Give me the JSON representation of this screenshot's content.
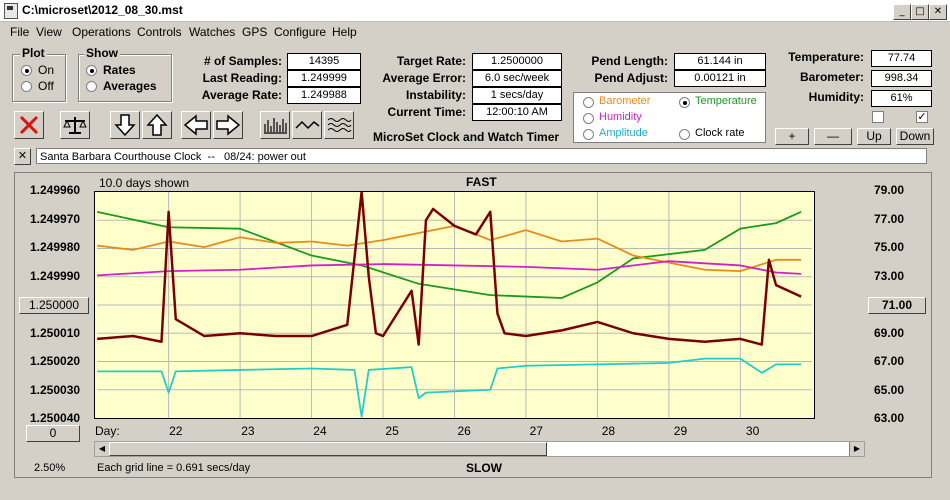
{
  "window": {
    "title": "C:\\microset\\2012_08_30.mst",
    "minimize": "_",
    "maximize": "□",
    "close": "✕"
  },
  "menu": [
    "File",
    "View",
    "Operations",
    "Controls",
    "Watches",
    "GPS",
    "Configure",
    "Help"
  ],
  "plot_group": {
    "title": "Plot",
    "on": "On",
    "off": "Off",
    "selected": "On"
  },
  "show_group": {
    "title": "Show",
    "rates": "Rates",
    "averages": "Averages",
    "selected": "Rates"
  },
  "stats": {
    "samples_label": "# of Samples:",
    "samples": "14395",
    "last_label": "Last Reading:",
    "last": "1.249999",
    "avg_label": "Average Rate:",
    "avg": "1.249988",
    "target_label": "Target Rate:",
    "target": "1.2500000",
    "err_label": "Average Error:",
    "err": "6.0 sec/week",
    "instab_label": "Instability:",
    "instab": "1 secs/day",
    "time_label": "Current Time:",
    "time": "12:00:10 AM",
    "pend_len_label": "Pend Length:",
    "pend_len": "61.144 in",
    "pend_adj_label": "Pend Adjust:",
    "pend_adj": "0.00121 in",
    "temp_label": "Temperature:",
    "temp": "77.74",
    "baro_label": "Barometer:",
    "baro": "998.34",
    "hum_label": "Humidity:",
    "hum": "61%"
  },
  "app_caption": "MicroSet Clock and Watch Timer",
  "sensors": {
    "barometer": {
      "label": "Barometer",
      "color": "#e88a1a"
    },
    "temperature": {
      "label": "Temperature",
      "color": "#1a9a1a"
    },
    "humidity": {
      "label": "Humidity",
      "color": "#cc22cc"
    },
    "amplitude": {
      "label": "Amplitude",
      "color": "#22cccc"
    },
    "clock_rate": {
      "label": "Clock rate",
      "color": "#000000"
    },
    "selected": "Temperature"
  },
  "adjust_buttons": {
    "plus": "+",
    "minus": "—",
    "up": "Up",
    "down": "Down"
  },
  "note": {
    "close": "✕",
    "text": "Santa Barbara Courthouse Clock  --   08/24: power out"
  },
  "chart_header": {
    "days_shown": "10.0 days shown",
    "top": "FAST",
    "bottom": "SLOW",
    "grid_note": "Each grid line = 0.691 secs/day",
    "zoom": "2.50%",
    "left_button": "1.250000",
    "right_button": "71.00",
    "offset_button": "0",
    "day_label": "Day:"
  },
  "icons": {
    "stop": "stop-icon",
    "balance": "balance-icon",
    "arrow_down": "arrow-down-icon",
    "arrow_up": "arrow-up-icon",
    "arrow_left": "arrow-left-icon",
    "arrow_right": "arrow-right-icon",
    "bars": "bar-chart-icon",
    "wave": "wave-icon",
    "multiwave": "multi-wave-icon"
  },
  "chart_data": {
    "type": "line",
    "left_axis": {
      "ticks": [
        "1.249960",
        "1.249970",
        "1.249980",
        "1.249990",
        "1.250000",
        "1.250010",
        "1.250020",
        "1.250030",
        "1.250040"
      ],
      "range": [
        1.24996,
        1.25004
      ],
      "inverted": true
    },
    "right_axis": {
      "ticks": [
        "79.00",
        "77.00",
        "75.00",
        "73.00",
        "71.00",
        "69.00",
        "67.00",
        "65.00",
        "63.00"
      ],
      "range": [
        63,
        79
      ]
    },
    "x_axis": {
      "ticks": [
        "22",
        "23",
        "24",
        "25",
        "26",
        "27",
        "28",
        "29",
        "30"
      ],
      "range": [
        21,
        31
      ]
    },
    "series": [
      {
        "key": "temperature",
        "color": "#1a9a1a",
        "x": [
          21,
          22,
          23,
          24,
          24.7,
          25.5,
          26.5,
          27.5,
          28,
          28.5,
          29,
          29.5,
          30,
          30.5,
          30.85
        ],
        "y": [
          77.6,
          76.5,
          76.4,
          74.5,
          73.8,
          72.5,
          71.7,
          71.5,
          72.6,
          74.3,
          74.6,
          74.9,
          76.4,
          76.8,
          77.6
        ]
      },
      {
        "key": "barometer",
        "color": "#e88a1a",
        "x": [
          21,
          21.5,
          22,
          22.5,
          23,
          23.5,
          24,
          24.5,
          25,
          25.5,
          26,
          26.5,
          27,
          27.5,
          28,
          28.5,
          29,
          29.5,
          30,
          30.5,
          30.85
        ],
        "y": [
          75.2,
          74.9,
          75.5,
          75.1,
          75.8,
          75.4,
          75.5,
          75.2,
          75.6,
          76.1,
          76.6,
          75.6,
          76.3,
          75.5,
          75.7,
          74.5,
          74.0,
          73.5,
          73.4,
          74.2,
          74.2
        ]
      },
      {
        "key": "humidity",
        "color": "#cc22cc",
        "x": [
          21,
          22,
          23,
          24,
          25,
          26,
          27,
          28,
          29,
          30,
          30.5,
          30.85
        ],
        "y": [
          73.1,
          73.4,
          73.5,
          73.8,
          73.9,
          73.8,
          73.7,
          73.5,
          74.1,
          73.8,
          73.3,
          73.2
        ]
      },
      {
        "key": "amplitude",
        "color": "#22cccc",
        "x": [
          21,
          21.9,
          22,
          22.1,
          23,
          24,
          24.6,
          24.7,
          24.8,
          25.4,
          25.5,
          25.6,
          26.5,
          26.6,
          27,
          28,
          29,
          29.5,
          30,
          30.3,
          30.5,
          30.85
        ],
        "y": [
          66.3,
          66.3,
          64.8,
          66.3,
          66.4,
          66.5,
          66.4,
          63.1,
          66.4,
          66.6,
          64.4,
          64.8,
          65.0,
          66.5,
          66.7,
          66.8,
          66.9,
          67.2,
          67.2,
          66.2,
          66.8,
          66.8
        ]
      },
      {
        "key": "clock_rate",
        "color": "#7a0000",
        "x": [
          21,
          21.5,
          21.9,
          22,
          22.1,
          22.5,
          23,
          23.5,
          24,
          24.5,
          24.7,
          24.8,
          24.9,
          25,
          25.4,
          25.5,
          25.6,
          25.7,
          26,
          26.3,
          26.5,
          26.6,
          26.7,
          27,
          27.5,
          28,
          28.5,
          29,
          29.5,
          30,
          30.3,
          30.4,
          30.5,
          30.85
        ],
        "y": [
          1.250012,
          1.250011,
          1.250013,
          1.249967,
          1.250005,
          1.250011,
          1.25001,
          1.250011,
          1.250011,
          1.250007,
          1.24996,
          1.24999,
          1.25001,
          1.250011,
          1.249995,
          1.250014,
          1.24997,
          1.249966,
          1.249972,
          1.249975,
          1.249967,
          1.250003,
          1.25001,
          1.250011,
          1.250009,
          1.250006,
          1.25001,
          1.250012,
          1.250013,
          1.250012,
          1.250014,
          1.249984,
          1.249993,
          1.249997
        ]
      }
    ]
  }
}
